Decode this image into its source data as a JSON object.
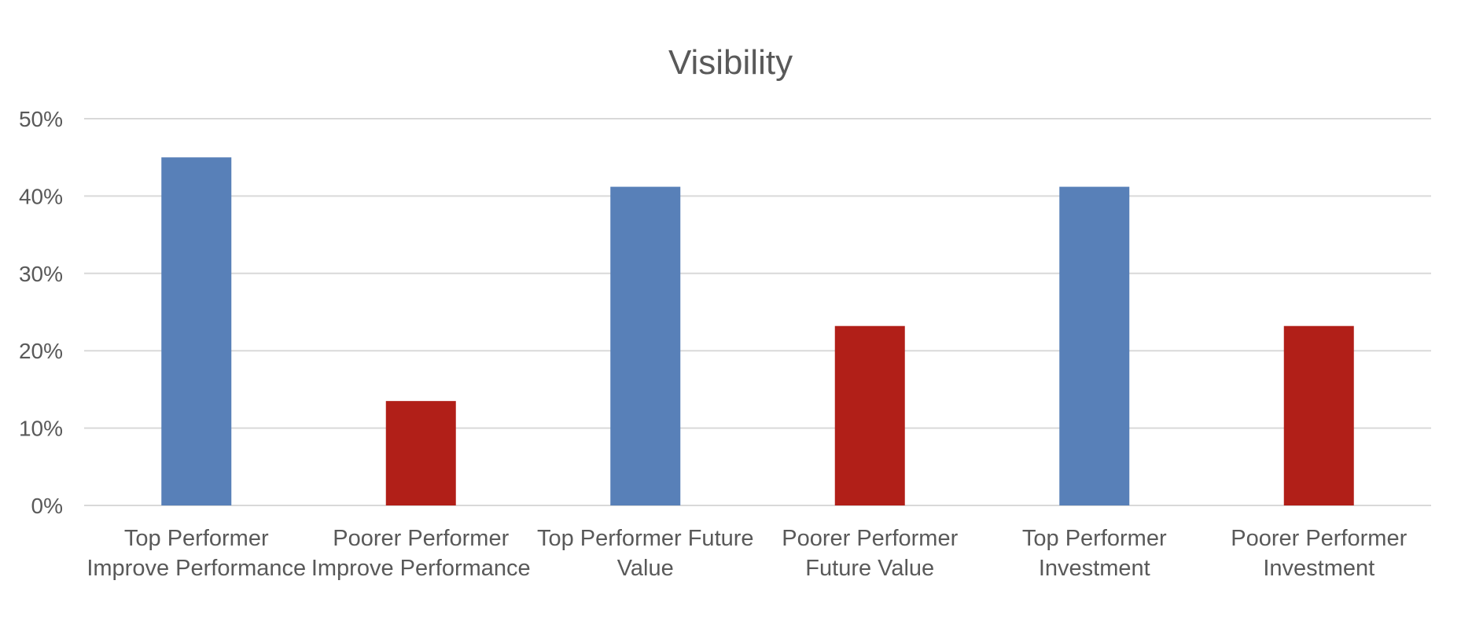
{
  "chart_data": {
    "type": "bar",
    "title": "Visibility",
    "xlabel": "",
    "ylabel": "",
    "ylim": [
      0,
      50
    ],
    "yticks": [
      "0%",
      "10%",
      "20%",
      "30%",
      "40%",
      "50%"
    ],
    "grid": true,
    "legend": "none",
    "categories": [
      [
        "Top Performer",
        "Improve Performance"
      ],
      [
        "Poorer Performer",
        "Improve Performance"
      ],
      [
        "Top Performer Future",
        "Value"
      ],
      [
        "Poorer Performer",
        "Future Value"
      ],
      [
        "Top Performer",
        "Investment"
      ],
      [
        "Poorer Performer",
        "Investment"
      ]
    ],
    "values": [
      45,
      13.5,
      41.2,
      23.2,
      41.2,
      23.2
    ],
    "bar_colors": [
      "#5880b8",
      "#b11f18",
      "#5880b8",
      "#b11f18",
      "#5880b8",
      "#b11f18"
    ],
    "title_color": "#595959",
    "text_color": "#595959",
    "grid_color": "#d9d9d9"
  }
}
